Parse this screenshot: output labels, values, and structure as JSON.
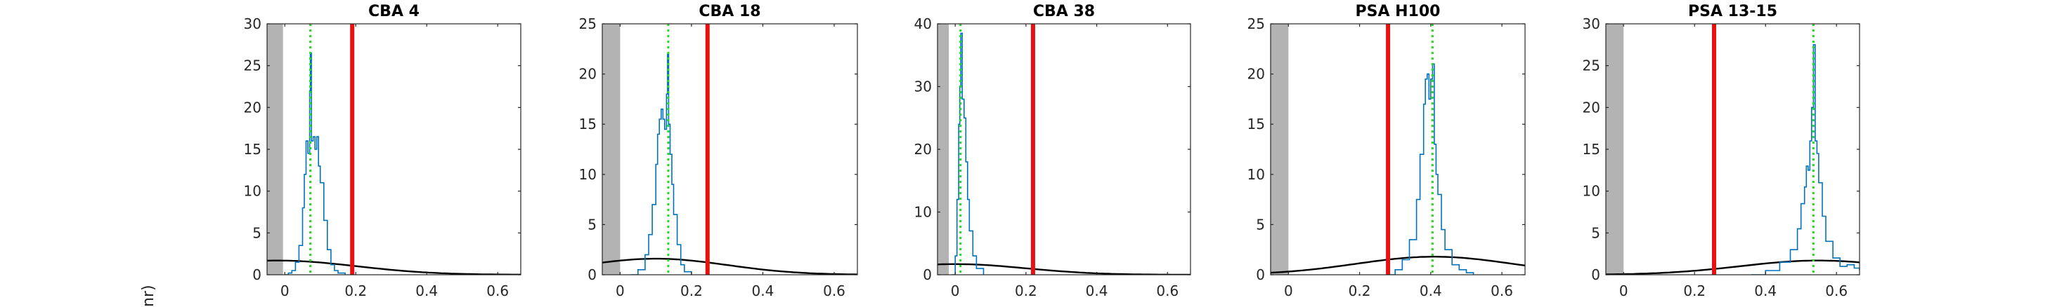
{
  "figure": {
    "ylabel_fragment": "nr)"
  },
  "colors": {
    "histogram": "#0072BD",
    "threshold_line": "#E81010",
    "mode_line": "#1EDC1E",
    "gaussian": "#000000",
    "excluded_region": "#B3B3B3"
  },
  "chart_data": [
    {
      "type": "area",
      "title": "CBA 4",
      "xlim": [
        -0.05,
        0.665
      ],
      "ylim": [
        0,
        30
      ],
      "xticks": [
        0,
        0.2,
        0.4,
        0.6
      ],
      "xtick_labels": [
        "0",
        "0.2",
        "0.4",
        "0.6"
      ],
      "yticks": [
        0,
        5,
        10,
        15,
        20,
        25,
        30
      ],
      "ytick_labels": [
        "0",
        "5",
        "10",
        "15",
        "20",
        "25",
        "30"
      ],
      "shaded_region_x": [
        -0.05,
        -0.005
      ],
      "threshold_x": 0.19,
      "mode_x": 0.072,
      "gaussian": {
        "mu": -0.02,
        "sigma": 0.22,
        "peak": 1.7
      },
      "histogram": {
        "x": [
          0.0,
          0.01,
          0.02,
          0.03,
          0.04,
          0.05,
          0.055,
          0.06,
          0.065,
          0.07,
          0.072,
          0.075,
          0.08,
          0.085,
          0.09,
          0.095,
          0.1,
          0.11,
          0.12,
          0.13,
          0.14,
          0.15,
          0.17
        ],
        "y": [
          0,
          0.2,
          0.5,
          1.5,
          3.5,
          8,
          12,
          16,
          14.5,
          22,
          26.5,
          16,
          16.5,
          15,
          16.5,
          13,
          11,
          6.5,
          3,
          1.2,
          0.5,
          0.2,
          0
        ]
      }
    },
    {
      "type": "area",
      "title": "CBA 18",
      "xlim": [
        -0.05,
        0.665
      ],
      "ylim": [
        0,
        25
      ],
      "xticks": [
        0,
        0.2,
        0.4,
        0.6
      ],
      "xtick_labels": [
        "0",
        "0.2",
        "0.4",
        "0.6"
      ],
      "yticks": [
        0,
        5,
        10,
        15,
        20,
        25
      ],
      "ytick_labels": [
        "0",
        "5",
        "10",
        "15",
        "20",
        "25"
      ],
      "shaded_region_x": [
        -0.05,
        0.0
      ],
      "threshold_x": 0.245,
      "mode_x": 0.135,
      "gaussian": {
        "mu": 0.1,
        "sigma": 0.2,
        "peak": 1.6
      },
      "histogram": {
        "x": [
          0.03,
          0.05,
          0.07,
          0.08,
          0.09,
          0.1,
          0.105,
          0.11,
          0.115,
          0.12,
          0.125,
          0.13,
          0.133,
          0.136,
          0.14,
          0.145,
          0.15,
          0.16,
          0.17,
          0.18,
          0.2
        ],
        "y": [
          0,
          0.5,
          2,
          4,
          7,
          11,
          14,
          15.5,
          16.5,
          15.5,
          14.5,
          18,
          22,
          15,
          12,
          9,
          6,
          3,
          1,
          0.3,
          0
        ]
      }
    },
    {
      "type": "area",
      "title": "CBA 38",
      "xlim": [
        -0.05,
        0.665
      ],
      "ylim": [
        0,
        40
      ],
      "xticks": [
        0,
        0.2,
        0.4,
        0.6
      ],
      "xtick_labels": [
        "0",
        "0.2",
        "0.4",
        "0.6"
      ],
      "yticks": [
        0,
        10,
        20,
        30,
        40
      ],
      "ytick_labels": [
        "0",
        "10",
        "20",
        "30",
        "40"
      ],
      "shaded_region_x": [
        -0.05,
        -0.018
      ],
      "threshold_x": 0.22,
      "mode_x": 0.015,
      "gaussian": {
        "mu": 0.0,
        "sigma": 0.2,
        "peak": 1.7
      },
      "histogram": {
        "x": [
          -0.01,
          0.0,
          0.005,
          0.01,
          0.013,
          0.016,
          0.02,
          0.025,
          0.03,
          0.035,
          0.04,
          0.05,
          0.06,
          0.08
        ],
        "y": [
          0,
          3,
          12,
          24,
          30,
          38.5,
          28,
          25,
          18,
          12,
          7,
          3,
          1,
          0
        ]
      }
    },
    {
      "type": "area",
      "title": "PSA H100",
      "xlim": [
        -0.05,
        0.665
      ],
      "ylim": [
        0,
        25
      ],
      "xticks": [
        0,
        0.2,
        0.4,
        0.6
      ],
      "xtick_labels": [
        "0",
        "0.2",
        "0.4",
        "0.6"
      ],
      "yticks": [
        0,
        5,
        10,
        15,
        20,
        25
      ],
      "ytick_labels": [
        "0",
        "5",
        "10",
        "15",
        "20",
        "25"
      ],
      "shaded_region_x": [
        -0.05,
        0.0
      ],
      "threshold_x": 0.28,
      "mode_x": 0.405,
      "gaussian": {
        "mu": 0.41,
        "sigma": 0.22,
        "peak": 1.8
      },
      "histogram": {
        "x": [
          0.28,
          0.3,
          0.32,
          0.34,
          0.36,
          0.37,
          0.38,
          0.385,
          0.39,
          0.395,
          0.4,
          0.405,
          0.41,
          0.415,
          0.42,
          0.43,
          0.44,
          0.46,
          0.48,
          0.5,
          0.52
        ],
        "y": [
          0,
          0.5,
          1.5,
          3.5,
          7.5,
          12,
          17,
          19.5,
          20,
          17.5,
          19.5,
          21,
          13,
          10,
          8,
          4.5,
          2.5,
          1,
          0.5,
          0.2,
          0
        ]
      }
    },
    {
      "type": "area",
      "title": "PSA 13-15",
      "xlim": [
        -0.05,
        0.665
      ],
      "ylim": [
        0,
        30
      ],
      "xticks": [
        0,
        0.2,
        0.4,
        0.6
      ],
      "xtick_labels": [
        "0",
        "0.2",
        "0.4",
        "0.6"
      ],
      "yticks": [
        0,
        5,
        10,
        15,
        20,
        25,
        30
      ],
      "ytick_labels": [
        "0",
        "5",
        "10",
        "15",
        "20",
        "25",
        "30"
      ],
      "shaded_region_x": [
        -0.05,
        0.0
      ],
      "threshold_x": 0.255,
      "mode_x": 0.535,
      "gaussian": {
        "mu": 0.55,
        "sigma": 0.22,
        "peak": 1.7
      },
      "histogram": {
        "x": [
          0.36,
          0.4,
          0.44,
          0.47,
          0.49,
          0.5,
          0.51,
          0.515,
          0.52,
          0.525,
          0.53,
          0.535,
          0.54,
          0.545,
          0.55,
          0.56,
          0.57,
          0.59,
          0.61,
          0.63,
          0.65,
          0.665
        ],
        "y": [
          0,
          0.5,
          1.5,
          3,
          5.5,
          8.5,
          10.5,
          13,
          12.5,
          16,
          20,
          27.5,
          16,
          14.5,
          11,
          7,
          4,
          2,
          1,
          1.2,
          0.8,
          0.5
        ]
      }
    }
  ]
}
